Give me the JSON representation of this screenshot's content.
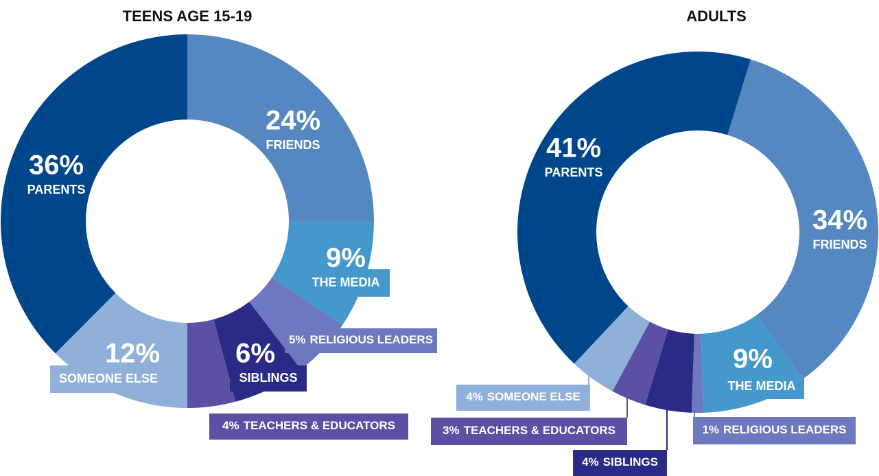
{
  "chart_data": [
    {
      "type": "pie",
      "title": "TEENS AGE 15-19",
      "categories": [
        "FRIENDS",
        "THE MEDIA",
        "RELIGIOUS LEADERS",
        "SIBLINGS",
        "TEACHERS & EDUCATORS",
        "SOMEONE ELSE",
        "PARENTS"
      ],
      "values": [
        24,
        9,
        5,
        6,
        4,
        12,
        36
      ],
      "value_labels": [
        "24%",
        "9%",
        "5%",
        "6%",
        "4%",
        "12%",
        "36%"
      ],
      "colors": [
        "#5587c0",
        "#4598cc",
        "#6d78be",
        "#2b2a86",
        "#5b50a3",
        "#8fb0d8",
        "#00468b"
      ]
    },
    {
      "type": "pie",
      "title": "ADULTS",
      "categories": [
        "FRIENDS",
        "THE MEDIA",
        "RELIGIOUS LEADERS",
        "SIBLINGS",
        "TEACHERS & EDUCATORS",
        "SOMEONE ELSE",
        "PARENTS"
      ],
      "values": [
        34,
        9,
        1,
        4,
        3,
        4,
        41
      ],
      "value_labels": [
        "34%",
        "9%",
        "1%",
        "4%",
        "3%",
        "4%",
        "41%"
      ],
      "colors": [
        "#5587c0",
        "#4598cc",
        "#6d78be",
        "#2b2a86",
        "#5b50a3",
        "#8fb0d8",
        "#00468b"
      ]
    }
  ]
}
